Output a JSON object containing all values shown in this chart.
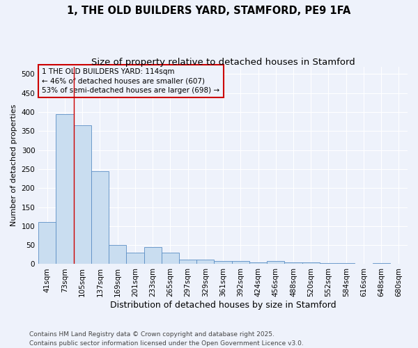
{
  "title": "1, THE OLD BUILDERS YARD, STAMFORD, PE9 1FA",
  "subtitle": "Size of property relative to detached houses in Stamford",
  "xlabel": "Distribution of detached houses by size in Stamford",
  "ylabel": "Number of detached properties",
  "categories": [
    "41sqm",
    "73sqm",
    "105sqm",
    "137sqm",
    "169sqm",
    "201sqm",
    "233sqm",
    "265sqm",
    "297sqm",
    "329sqm",
    "361sqm",
    "392sqm",
    "424sqm",
    "456sqm",
    "488sqm",
    "520sqm",
    "552sqm",
    "584sqm",
    "616sqm",
    "648sqm",
    "680sqm"
  ],
  "values": [
    110,
    395,
    365,
    245,
    50,
    30,
    45,
    30,
    12,
    12,
    8,
    8,
    5,
    8,
    4,
    5,
    3,
    2,
    1,
    2,
    1
  ],
  "bar_color": "#c9ddf0",
  "bar_edge_color": "#5b8ec4",
  "background_color": "#eef2fb",
  "grid_color": "#ffffff",
  "annotation_box_text": "1 THE OLD BUILDERS YARD: 114sqm\n← 46% of detached houses are smaller (607)\n53% of semi-detached houses are larger (698) →",
  "annotation_box_color": "#cc0000",
  "red_line_x": 1.5,
  "ylim": [
    0,
    520
  ],
  "yticks": [
    0,
    50,
    100,
    150,
    200,
    250,
    300,
    350,
    400,
    450,
    500
  ],
  "footer": "Contains HM Land Registry data © Crown copyright and database right 2025.\nContains public sector information licensed under the Open Government Licence v3.0.",
  "title_fontsize": 10.5,
  "subtitle_fontsize": 9.5,
  "xlabel_fontsize": 9,
  "ylabel_fontsize": 8,
  "tick_fontsize": 7.5,
  "annotation_fontsize": 7.5,
  "footer_fontsize": 6.5
}
